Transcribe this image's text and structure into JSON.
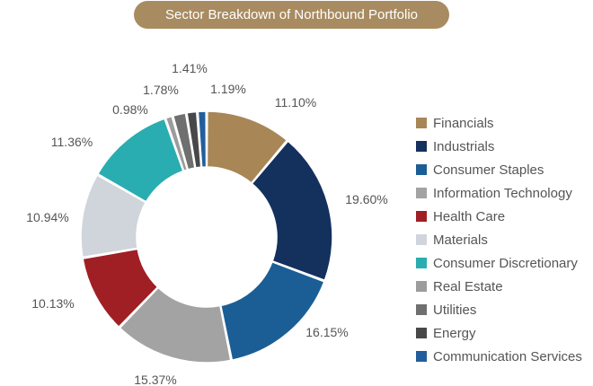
{
  "title": "Sector Breakdown of Northbound Portfolio",
  "chart_data": {
    "type": "pie",
    "title": "Sector Breakdown of Northbound Portfolio",
    "donut": true,
    "legend_position": "right",
    "categories": [
      "Financials",
      "Industrials",
      "Consumer Staples",
      "Information Technology",
      "Health Care",
      "Materials",
      "Consumer Discretionary",
      "Real Estate",
      "Utilities",
      "Energy",
      "Communication Services"
    ],
    "values": [
      11.1,
      19.6,
      16.15,
      15.37,
      10.13,
      10.94,
      11.36,
      0.98,
      1.78,
      1.41,
      1.19
    ],
    "labels": [
      "11.10%",
      "19.60%",
      "16.15%",
      "15.37%",
      "10.13%",
      "10.94%",
      "11.36%",
      "0.98%",
      "1.78%",
      "1.41%",
      "1.19%"
    ],
    "colors": [
      "#a88656",
      "#14305d",
      "#1b5e95",
      "#a3a3a3",
      "#a01f24",
      "#d0d5dc",
      "#29adb1",
      "#9c9c9c",
      "#6f6f6f",
      "#484848",
      "#225e9c"
    ]
  }
}
